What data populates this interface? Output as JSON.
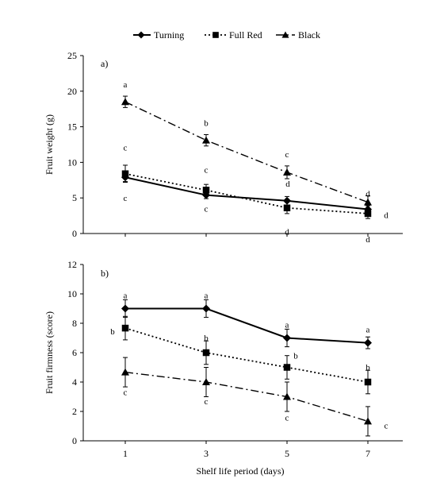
{
  "legend": {
    "items": [
      {
        "name": "Turning",
        "marker": "diamond",
        "dash": "solid"
      },
      {
        "name": "Full Red",
        "marker": "square",
        "dash": "dotted"
      },
      {
        "name": "Black",
        "marker": "triangle",
        "dash": "dashdot"
      }
    ]
  },
  "xlabel": "Shelf life period (days)",
  "chart_data": [
    {
      "type": "line",
      "panel_label": "a)",
      "ylabel": "Fruit weight (g)",
      "x": [
        1,
        3,
        5,
        7
      ],
      "xticks": [
        "1",
        "3",
        "5",
        "7"
      ],
      "ylim": [
        0,
        25
      ],
      "yticks": [
        0,
        5,
        10,
        15,
        20,
        25
      ],
      "grid": false,
      "legend_position": "top-center",
      "series": [
        {
          "name": "Turning",
          "values": [
            7.9,
            5.4,
            4.6,
            3.4
          ],
          "errors": [
            0.6,
            0.5,
            0.6,
            0.5
          ],
          "letters": [
            "c",
            "c",
            "d",
            "d"
          ]
        },
        {
          "name": "Full Red",
          "values": [
            8.4,
            6.1,
            3.6,
            2.8
          ],
          "errors": [
            1.2,
            0.8,
            0.8,
            0.7
          ],
          "letters": [
            "c",
            "c",
            "d",
            "d"
          ]
        },
        {
          "name": "Black",
          "values": [
            18.5,
            13.1,
            8.6,
            4.4
          ],
          "errors": [
            0.8,
            0.8,
            0.9,
            0.9
          ],
          "letters": [
            "a",
            "b",
            "c",
            "d"
          ]
        }
      ]
    },
    {
      "type": "line",
      "panel_label": "b)",
      "ylabel": "Fruit firmness (score)",
      "x": [
        1,
        3,
        5,
        7
      ],
      "xticks": [
        "1",
        "3",
        "5",
        "7"
      ],
      "ylim": [
        0,
        12
      ],
      "yticks": [
        0,
        2,
        4,
        6,
        8,
        10,
        12
      ],
      "grid": false,
      "series": [
        {
          "name": "Turning",
          "values": [
            9.0,
            9.0,
            7.0,
            6.67
          ],
          "errors": [
            0.6,
            0.6,
            0.6,
            0.4
          ],
          "letters": [
            "a",
            "a",
            "a",
            "a"
          ]
        },
        {
          "name": "Full Red",
          "values": [
            7.67,
            6.0,
            5.0,
            4.0
          ],
          "errors": [
            0.8,
            0.8,
            0.8,
            0.8
          ],
          "letters": [
            "b",
            "b",
            "b",
            "b"
          ]
        },
        {
          "name": "Black",
          "values": [
            4.67,
            4.0,
            3.0,
            1.33
          ],
          "errors": [
            1.0,
            1.0,
            1.0,
            1.0
          ],
          "letters": [
            "c",
            "c",
            "c",
            "c"
          ]
        }
      ]
    }
  ]
}
